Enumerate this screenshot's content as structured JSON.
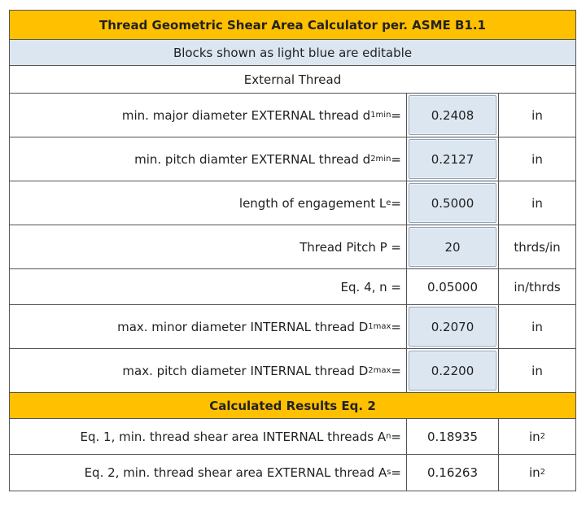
{
  "title": "Thread Geometric Shear Area Calculator per. ASME B1.1",
  "note": "Blocks shown as light blue are editable",
  "section": "External Thread",
  "inputs": [
    {
      "label": "min. major diameter EXTERNAL thread d",
      "sub": "1min",
      "eq": " =",
      "value": "0.2408",
      "unit": "in",
      "editable": true
    },
    {
      "label": "min. pitch diamter EXTERNAL thread d",
      "sub": "2min",
      "eq": " =",
      "value": "0.2127",
      "unit": "in",
      "editable": true
    },
    {
      "label": "length of engagement L",
      "sub": "e",
      "eq": " =",
      "value": "0.5000",
      "unit": "in",
      "editable": true
    },
    {
      "label": "Thread Pitch P =",
      "sub": "",
      "eq": "",
      "value": "20",
      "unit": "thrds/in",
      "editable": true
    },
    {
      "label": "Eq. 4, n =",
      "sub": "",
      "eq": "",
      "value": "0.05000",
      "unit": "in/thrds",
      "editable": false
    },
    {
      "label": "max. minor diameter INTERNAL thread D",
      "sub": "1max",
      "eq": " =",
      "value": "0.2070",
      "unit": "in",
      "editable": true
    },
    {
      "label": "max. pitch diameter INTERNAL thread D",
      "sub": "2max",
      "eq": " =",
      "value": "0.2200",
      "unit": "in",
      "editable": true
    }
  ],
  "results_title": "Calculated Results Eq. 2",
  "results": [
    {
      "label": "Eq. 1, min. thread shear area INTERNAL threads A",
      "sub": "n",
      "eq": " =",
      "value": "0.18935",
      "unit": "in",
      "unit_sup": "2"
    },
    {
      "label": "Eq. 2, min. thread shear area EXTERNAL thread A",
      "sub": "s",
      "eq": " =",
      "value": "0.16263",
      "unit": "in",
      "unit_sup": "2"
    }
  ],
  "colors": {
    "header": "#ffc000",
    "editable": "#dce6f1",
    "border": "#555555"
  }
}
